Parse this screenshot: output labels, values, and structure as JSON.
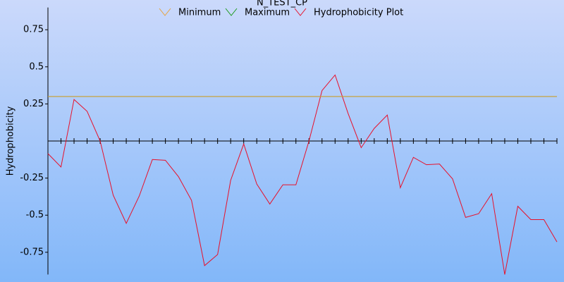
{
  "chart_data": {
    "type": "line",
    "title": "N_TEST_CP",
    "y_label": "Hydrophobicity",
    "x": [
      1,
      2,
      3,
      4,
      5,
      6,
      7,
      8,
      9,
      10,
      11,
      12,
      13,
      14,
      15,
      16,
      17,
      18,
      19,
      20,
      21,
      22,
      23,
      24,
      25,
      26,
      27,
      28,
      29,
      30,
      31,
      32,
      33,
      34,
      35,
      36,
      37,
      38,
      39,
      40
    ],
    "xlim": [
      1,
      40
    ],
    "ylim": [
      -0.9,
      0.9
    ],
    "yticks": [
      -0.75,
      -0.5,
      -0.25,
      0.25,
      0.5,
      0.75
    ],
    "series": [
      {
        "name": "Minimum",
        "color": "#e8a33c",
        "values": [
          0.3,
          0.3,
          0.3,
          0.3,
          0.3,
          0.3,
          0.3,
          0.3,
          0.3,
          0.3,
          0.3,
          0.3,
          0.3,
          0.3,
          0.3,
          0.3,
          0.3,
          0.3,
          0.3,
          0.3,
          0.3,
          0.3,
          0.3,
          0.3,
          0.3,
          0.3,
          0.3,
          0.3,
          0.3,
          0.3,
          0.3,
          0.3,
          0.3,
          0.3,
          0.3,
          0.3,
          0.3,
          0.3,
          0.3,
          0.3
        ]
      },
      {
        "name": "Maximum",
        "color": "#1a9a1a",
        "values": [
          0.3,
          0.3,
          0.3,
          0.3,
          0.3,
          0.3,
          0.3,
          0.3,
          0.3,
          0.3,
          0.3,
          0.3,
          0.3,
          0.3,
          0.3,
          0.3,
          0.3,
          0.3,
          0.3,
          0.3,
          0.3,
          0.3,
          0.3,
          0.3,
          0.3,
          0.3,
          0.3,
          0.3,
          0.3,
          0.3,
          0.3,
          0.3,
          0.3,
          0.3,
          0.3,
          0.3,
          0.3,
          0.3,
          0.3,
          0.3
        ]
      },
      {
        "name": "Hydrophobicity Plot",
        "color": "#e8102a",
        "values": [
          -0.085,
          -0.175,
          0.28,
          0.2,
          0.0,
          -0.365,
          -0.555,
          -0.37,
          -0.125,
          -0.13,
          -0.24,
          -0.4,
          -0.84,
          -0.765,
          -0.265,
          -0.02,
          -0.29,
          -0.425,
          -0.295,
          -0.295,
          0.0,
          0.34,
          0.445,
          0.185,
          -0.045,
          0.085,
          0.175,
          -0.315,
          -0.11,
          -0.16,
          -0.155,
          -0.255,
          -0.515,
          -0.49,
          -0.355,
          -0.9,
          -0.44,
          -0.53,
          -0.53,
          -0.68
        ]
      }
    ]
  }
}
